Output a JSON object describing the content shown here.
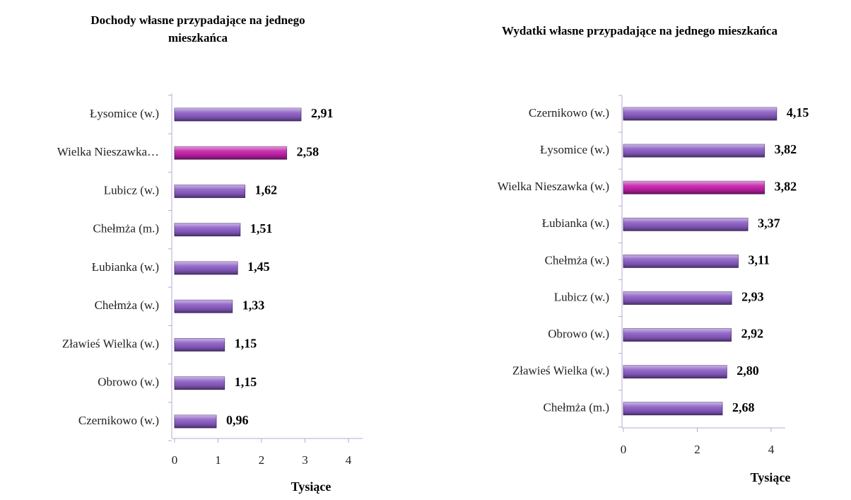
{
  "chart_data": [
    {
      "type": "bar",
      "orientation": "horizontal",
      "title": "Dochody własne przypadające na jednego mieszkańca",
      "x_label": "Tysiące",
      "categories": [
        "Łysomice (w.)",
        "Wielka Nieszawka…",
        "Lubicz (w.)",
        "Chełmża (m.)",
        "Łubianka (w.)",
        "Chełmża (w.)",
        "Zławieś Wielka (w.)",
        "Obrowo (w.)",
        "Czernikowo (w.)"
      ],
      "values": [
        2.91,
        2.58,
        1.62,
        1.51,
        1.45,
        1.33,
        1.15,
        1.15,
        0.96
      ],
      "value_labels": [
        "2,91",
        "2,58",
        "1,62",
        "1,51",
        "1,45",
        "1,33",
        "1,15",
        "1,15",
        "0,96"
      ],
      "colors": [
        "#8a5cc4",
        "#c21ea8",
        "#8a5cc4",
        "#8a5cc4",
        "#8a5cc4",
        "#8a5cc4",
        "#8a5cc4",
        "#8a5cc4",
        "#8a5cc4"
      ],
      "xlim": [
        0,
        4
      ],
      "xticks": [
        0,
        1,
        2,
        3,
        4
      ]
    },
    {
      "type": "bar",
      "orientation": "horizontal",
      "title": "Wydatki własne przypadające na jednego mieszkańca",
      "x_label": "Tysiące",
      "categories": [
        "Czernikowo (w.)",
        "Łysomice (w.)",
        "Wielka Nieszawka (w.)",
        "Łubianka (w.)",
        "Chełmża (w.)",
        "Lubicz (w.)",
        "Obrowo (w.)",
        "Zławieś Wielka (w.)",
        "Chełmża (m.)"
      ],
      "values": [
        4.15,
        3.82,
        3.82,
        3.37,
        3.11,
        2.93,
        2.92,
        2.8,
        2.68
      ],
      "value_labels": [
        "4,15",
        "3,82",
        "3,82",
        "3,37",
        "3,11",
        "2,93",
        "2,92",
        "2,80",
        "2,68"
      ],
      "colors": [
        "#8a5cc4",
        "#8a5cc4",
        "#c21ea8",
        "#8a5cc4",
        "#8a5cc4",
        "#8a5cc4",
        "#8a5cc4",
        "#8a5cc4",
        "#8a5cc4"
      ],
      "xlim": [
        0,
        4
      ],
      "xticks": [
        0,
        2,
        4
      ]
    }
  ]
}
